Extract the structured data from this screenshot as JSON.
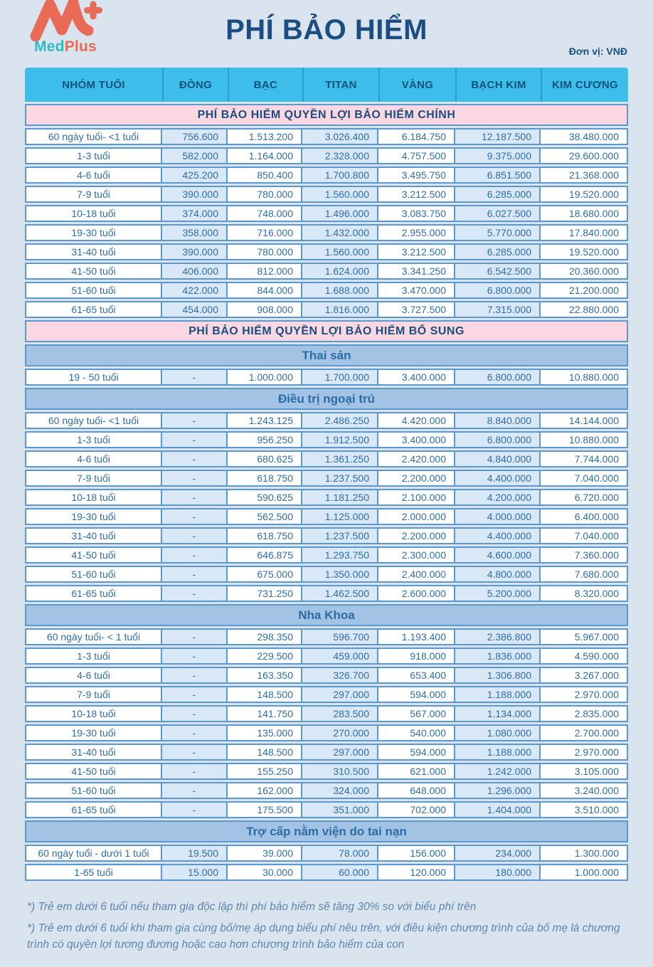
{
  "header": {
    "title": "PHÍ BẢO HIỂM",
    "unit_label": "Đơn vị: VNĐ",
    "logo": {
      "med": "Med",
      "plus": "Plus"
    }
  },
  "colors": {
    "page_background": "#d9e4ef",
    "brand_coral": "#e96a55",
    "brand_teal": "#2bbcc3",
    "table_header_cyan": "#3dbde9",
    "section_pink": "#fbd7e2",
    "section_blue": "#a2c3e4",
    "cell_border_blue": "#5a98ce",
    "tint_column": "#d9e8f7",
    "navy_text": "#1b4d80"
  },
  "table": {
    "columns": [
      "NHÓM TUỔI",
      "ĐỒNG",
      "BẠC",
      "TITAN",
      "VÀNG",
      "BẠCH KIM",
      "KIM CƯƠNG"
    ],
    "sections": [
      {
        "type": "main",
        "title": "PHÍ BẢO HIỂM QUYỀN LỢI BẢO HIỂM CHÍNH",
        "rows": [
          {
            "age": "60 ngày tuổi- <1 tuổi",
            "values": [
              "756.600",
              "1.513.200",
              "3.026.400",
              "6.184.750",
              "12.187.500",
              "38.480.000"
            ]
          },
          {
            "age": "1-3 tuổi",
            "values": [
              "582.000",
              "1.164.000",
              "2.328.000",
              "4.757.500",
              "9.375.000",
              "29.600.000"
            ]
          },
          {
            "age": "4-6 tuổi",
            "values": [
              "425.200",
              "850.400",
              "1.700.800",
              "3.495.750",
              "6.851.500",
              "21.368.000"
            ]
          },
          {
            "age": "7-9 tuổi",
            "values": [
              "390.000",
              "780.000",
              "1.560.000",
              "3.212.500",
              "6.285.000",
              "19.520.000"
            ]
          },
          {
            "age": "10-18 tuổi",
            "values": [
              "374.000",
              "748.000",
              "1.496.000",
              "3.083.750",
              "6.027.500",
              "18.680.000"
            ]
          },
          {
            "age": "19-30 tuổi",
            "values": [
              "358.000",
              "716.000",
              "1.432.000",
              "2.955.000",
              "5.770.000",
              "17.840.000"
            ]
          },
          {
            "age": "31-40 tuổi",
            "values": [
              "390.000",
              "780.000",
              "1.560.000",
              "3.212.500",
              "6.285.000",
              "19.520.000"
            ]
          },
          {
            "age": "41-50 tuổi",
            "values": [
              "406.000",
              "812.000",
              "1.624.000",
              "3.341.250",
              "6.542.500",
              "20.360.000"
            ]
          },
          {
            "age": "51-60 tuổi",
            "values": [
              "422.000",
              "844.000",
              "1.688.000",
              "3.470.000",
              "6.800.000",
              "21.200.000"
            ]
          },
          {
            "age": "61-65 tuổi",
            "values": [
              "454.000",
              "908.000",
              "1.816.000",
              "3.727.500",
              "7.315.000",
              "22.880.000"
            ]
          }
        ]
      },
      {
        "type": "main",
        "title": "PHÍ BẢO HIỂM QUYỀN LỢI BẢO HIỂM BỔ SUNG",
        "rows": []
      },
      {
        "type": "sub",
        "title": "Thai sản",
        "rows": [
          {
            "age": "19 - 50 tuổi",
            "values": [
              "-",
              "1.000.000",
              "1.700.000",
              "3.400.000",
              "6.800.000",
              "10.880.000"
            ]
          }
        ]
      },
      {
        "type": "sub",
        "title": "Điều trị ngoại trú",
        "rows": [
          {
            "age": "60 ngày tuổi- <1 tuổi",
            "values": [
              "-",
              "1.243.125",
              "2.486.250",
              "4.420.000",
              "8.840.000",
              "14.144.000"
            ]
          },
          {
            "age": "1-3 tuổi",
            "values": [
              "-",
              "956.250",
              "1.912.500",
              "3.400.000",
              "6.800.000",
              "10.880.000"
            ]
          },
          {
            "age": "4-6 tuổi",
            "values": [
              "-",
              "680.625",
              "1.361.250",
              "2.420.000",
              "4.840.000",
              "7.744.000"
            ]
          },
          {
            "age": "7-9 tuổi",
            "values": [
              "-",
              "618.750",
              "1.237.500",
              "2.200.000",
              "4.400.000",
              "7.040.000"
            ]
          },
          {
            "age": "10-18 tuổi",
            "values": [
              "-",
              "590.625",
              "1.181.250",
              "2.100.000",
              "4.200.000",
              "6.720.000"
            ]
          },
          {
            "age": "19-30 tuổi",
            "values": [
              "-",
              "562.500",
              "1.125.000",
              "2.000.000",
              "4.000.000",
              "6.400.000"
            ]
          },
          {
            "age": "31-40 tuổi",
            "values": [
              "-",
              "618.750",
              "1.237.500",
              "2.200.000",
              "4.400.000",
              "7.040.000"
            ]
          },
          {
            "age": "41-50 tuổi",
            "values": [
              "-",
              "646.875",
              "1.293.750",
              "2.300.000",
              "4.600.000",
              "7.360.000"
            ]
          },
          {
            "age": "51-60 tuổi",
            "values": [
              "-",
              "675.000",
              "1.350.000",
              "2.400.000",
              "4.800.000",
              "7.680.000"
            ]
          },
          {
            "age": "61-65 tuổi",
            "values": [
              "-",
              "731.250",
              "1.462.500",
              "2.600.000",
              "5.200.000",
              "8.320.000"
            ]
          }
        ]
      },
      {
        "type": "sub",
        "title": "Nha Khoa",
        "rows": [
          {
            "age": "60 ngày tuổi- < 1 tuổi",
            "values": [
              "-",
              "298.350",
              "596.700",
              "1.193.400",
              "2.386.800",
              "5.967.000"
            ]
          },
          {
            "age": "1-3 tuổi",
            "values": [
              "-",
              "229.500",
              "459.000",
              "918.000",
              "1.836.000",
              "4.590.000"
            ]
          },
          {
            "age": "4-6 tuổi",
            "values": [
              "-",
              "163.350",
              "326.700",
              "653.400",
              "1.306.800",
              "3.267.000"
            ]
          },
          {
            "age": "7-9 tuổi",
            "values": [
              "-",
              "148.500",
              "297.000",
              "594.000",
              "1.188.000",
              "2.970.000"
            ]
          },
          {
            "age": "10-18 tuổi",
            "values": [
              "-",
              "141.750",
              "283.500",
              "567.000",
              "1.134.000",
              "2.835.000"
            ]
          },
          {
            "age": "19-30 tuổi",
            "values": [
              "-",
              "135.000",
              "270.000",
              "540.000",
              "1.080.000",
              "2.700.000"
            ]
          },
          {
            "age": "31-40 tuổi",
            "values": [
              "-",
              "148.500",
              "297.000",
              "594.000",
              "1.188.000",
              "2.970.000"
            ]
          },
          {
            "age": "41-50 tuổi",
            "values": [
              "-",
              "155.250",
              "310.500",
              "621.000",
              "1.242.000",
              "3.105.000"
            ]
          },
          {
            "age": "51-60 tuổi",
            "values": [
              "-",
              "162.000",
              "324.000",
              "648.000",
              "1.296.000",
              "3.240.000"
            ]
          },
          {
            "age": "61-65 tuổi",
            "values": [
              "-",
              "175.500",
              "351.000",
              "702.000",
              "1.404.000",
              "3.510.000"
            ]
          }
        ]
      },
      {
        "type": "sub",
        "title": "Trợ cấp nằm viện do tai nạn",
        "rows": [
          {
            "age": "60 ngày tuổi - dưới 1 tuổi",
            "values": [
              "19.500",
              "39.000",
              "78.000",
              "156.000",
              "234.000",
              "1.300.000"
            ]
          },
          {
            "age": "1-65 tuổi",
            "values": [
              "15.000",
              "30.000",
              "60.000",
              "120.000",
              "180.000",
              "1.000.000"
            ]
          }
        ]
      }
    ]
  },
  "footnotes": [
    "*) Trẻ em dưới 6 tuổi nếu tham gia độc lập thì phí bảo hiểm sẽ tăng 30% so với biểu phí trên",
    "*) Trẻ em dưới 6 tuổi khi tham gia cùng bố/mẹ áp dụng biểu phí nêu trên, với điều kiện chương trình của bố mẹ là chương trình có quyền lợi tương đương hoặc cao hơn chương trình bảo hiểm của con"
  ]
}
